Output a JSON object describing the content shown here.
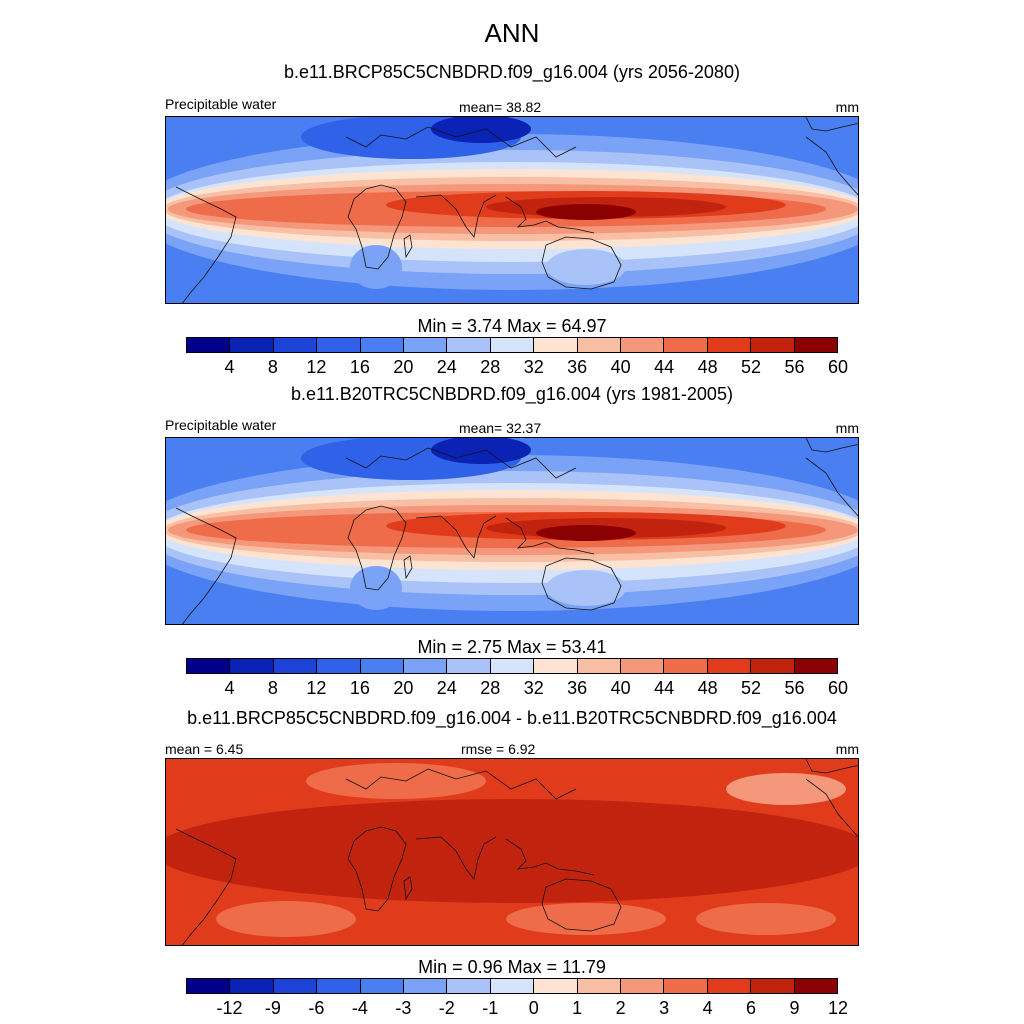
{
  "title": "ANN",
  "panels": [
    {
      "title": "b.e11.BRCP85C5CNBDRD.f09_g16.004 (yrs 2056-2080)",
      "left_label": "Precipitable water",
      "center_label": "mean=  38.82",
      "right_label": "mm",
      "minmax": "Min =   3.74 Max =  64.97",
      "colorbar_ticks": [
        "4",
        "8",
        "12",
        "16",
        "20",
        "24",
        "28",
        "32",
        "36",
        "40",
        "44",
        "48",
        "52",
        "56",
        "60"
      ],
      "field": {
        "scheme": "absolute",
        "global_mean": 38.82,
        "min": 3.74,
        "max": 64.97
      }
    },
    {
      "title": "b.e11.B20TRC5CNBDRD.f09_g16.004 (yrs 1981-2005)",
      "left_label": "Precipitable water",
      "center_label": "mean=  32.37",
      "right_label": "mm",
      "minmax": "Min =   2.75 Max =  53.41",
      "colorbar_ticks": [
        "4",
        "8",
        "12",
        "16",
        "20",
        "24",
        "28",
        "32",
        "36",
        "40",
        "44",
        "48",
        "52",
        "56",
        "60"
      ],
      "field": {
        "scheme": "absolute",
        "global_mean": 32.37,
        "min": 2.75,
        "max": 53.41
      }
    },
    {
      "title": "b.e11.BRCP85C5CNBDRD.f09_g16.004 - b.e11.B20TRC5CNBDRD.f09_g16.004",
      "left_label": "mean =   6.45",
      "center_label": "rmse =   6.92",
      "right_label": "mm",
      "minmax": "Min =   0.96 Max =  11.79",
      "colorbar_ticks": [
        "-12",
        "-9",
        "-6",
        "-4",
        "-3",
        "-2",
        "-1",
        "0",
        "1",
        "2",
        "3",
        "4",
        "6",
        "9",
        "12"
      ],
      "field": {
        "scheme": "difference",
        "global_mean": 6.45,
        "min": 0.96,
        "max": 11.79
      }
    }
  ],
  "colorbar_colors": [
    "#00008b",
    "#0b23b4",
    "#1d44d6",
    "#2f62e8",
    "#4a7ff2",
    "#7aa2f6",
    "#a9c3f8",
    "#d6e4fb",
    "#fde4d2",
    "#f8bfa4",
    "#f4977a",
    "#ef6c4b",
    "#e03c1c",
    "#c2230f",
    "#8b0000"
  ]
}
